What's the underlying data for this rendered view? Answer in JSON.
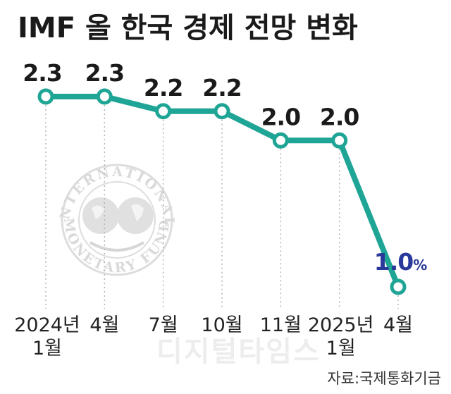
{
  "chart_data": {
    "type": "line",
    "title": "IMF 올 한국 경제 전망 변화",
    "categories": [
      [
        "2024년",
        "1월"
      ],
      [
        "4월"
      ],
      [
        "7월"
      ],
      [
        "10월"
      ],
      [
        "11월"
      ],
      [
        "2025년",
        "1월"
      ],
      [
        "4월"
      ]
    ],
    "values": [
      2.3,
      2.3,
      2.2,
      2.2,
      2.0,
      2.0,
      1.0
    ],
    "data_labels": [
      "2.3",
      "2.3",
      "2.2",
      "2.2",
      "2.0",
      "2.0",
      "1.0"
    ],
    "last_label_unit": "%",
    "ylim": [
      1.0,
      2.3
    ],
    "grid": "vertical dotted guides",
    "colors": {
      "line": "#1fa595",
      "marker_fill": "#ffffff",
      "highlight_label": "#2a3a9a",
      "text": "#1a1a1a"
    }
  },
  "logo": {
    "name": "imf-seal",
    "top_text": "INTERNATIONAL",
    "bottom_text": "MONETARY FUND"
  },
  "watermark": "디지털타임스",
  "source": "자료:국제통화기금"
}
